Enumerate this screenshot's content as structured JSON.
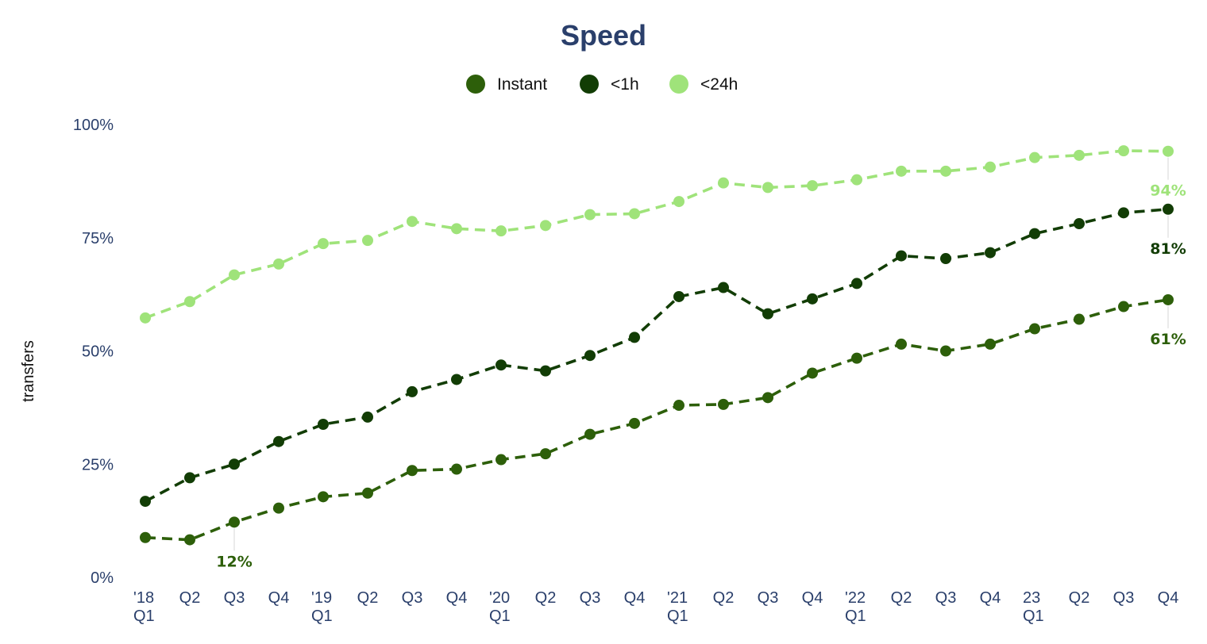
{
  "chart_data": {
    "type": "line",
    "title": "Speed",
    "xlabel": "",
    "ylabel": "transfers",
    "ylim": [
      0,
      100
    ],
    "yticks": [
      0,
      25,
      50,
      75,
      100
    ],
    "ytick_labels": [
      "0%",
      "25%",
      "50%",
      "75%",
      "100%"
    ],
    "grid": false,
    "legend_position": "top-center",
    "categories": [
      "2018 Q1",
      "2018 Q2",
      "2018 Q3",
      "2018 Q4",
      "2019 Q1",
      "2019 Q2",
      "2019 Q3",
      "2019 Q4",
      "2020 Q1",
      "2020 Q2",
      "2020 Q3",
      "2020 Q4",
      "2021 Q1",
      "2021 Q2",
      "2021 Q3",
      "2021 Q4",
      "2022 Q1",
      "2022 Q2",
      "2022 Q3",
      "2022 Q4",
      "2023 Q1",
      "2023 Q2",
      "2023 Q3",
      "2023 Q4"
    ],
    "x_tick_labels": [
      [
        "'18",
        "Q1"
      ],
      [
        "Q2",
        ""
      ],
      [
        "Q3",
        ""
      ],
      [
        "Q4",
        ""
      ],
      [
        "'19",
        "Q1"
      ],
      [
        "Q2",
        ""
      ],
      [
        "Q3",
        ""
      ],
      [
        "Q4",
        ""
      ],
      [
        "'20",
        "Q1"
      ],
      [
        "Q2",
        ""
      ],
      [
        "Q3",
        ""
      ],
      [
        "Q4",
        ""
      ],
      [
        "'21",
        "Q1"
      ],
      [
        "Q2",
        ""
      ],
      [
        "Q3",
        ""
      ],
      [
        "Q4",
        ""
      ],
      [
        "'22",
        "Q1"
      ],
      [
        "Q2",
        ""
      ],
      [
        "Q3",
        ""
      ],
      [
        "Q4",
        ""
      ],
      [
        "23",
        "Q1"
      ],
      [
        "Q2",
        ""
      ],
      [
        "Q3",
        ""
      ],
      [
        "Q4",
        ""
      ]
    ],
    "series": [
      {
        "name": "Instant",
        "color": "#2d5f0a",
        "values": [
          8.8,
          8.3,
          12.2,
          15.3,
          17.8,
          18.6,
          23.6,
          23.9,
          26.0,
          27.3,
          31.6,
          34.0,
          38.0,
          38.2,
          39.7,
          45.1,
          48.4,
          51.5,
          50.0,
          51.5,
          54.9,
          57.0,
          59.8,
          61.3
        ],
        "annotations": [
          {
            "index": 2,
            "text": "12%",
            "position": "below"
          },
          {
            "index": 23,
            "text": "61%",
            "position": "below"
          }
        ]
      },
      {
        "name": "<1h",
        "color": "#123d05",
        "values": [
          16.8,
          22.0,
          25.0,
          30.0,
          33.8,
          35.4,
          41.0,
          43.7,
          46.9,
          45.6,
          49.0,
          53.0,
          62.0,
          64.0,
          58.2,
          61.5,
          64.9,
          71.0,
          70.4,
          71.7,
          75.9,
          78.1,
          80.5,
          81.3
        ],
        "annotations": [
          {
            "index": 23,
            "text": "81%",
            "position": "below"
          }
        ]
      },
      {
        "name": "<24h",
        "color": "#9fe37a",
        "values": [
          57.3,
          60.9,
          66.8,
          69.2,
          73.7,
          74.4,
          78.6,
          77.0,
          76.5,
          77.7,
          80.1,
          80.3,
          83.0,
          87.1,
          86.1,
          86.5,
          87.8,
          89.7,
          89.7,
          90.6,
          92.7,
          93.2,
          94.2,
          94.1
        ],
        "annotations": [
          {
            "index": 23,
            "text": "94%",
            "position": "below"
          }
        ]
      }
    ]
  }
}
